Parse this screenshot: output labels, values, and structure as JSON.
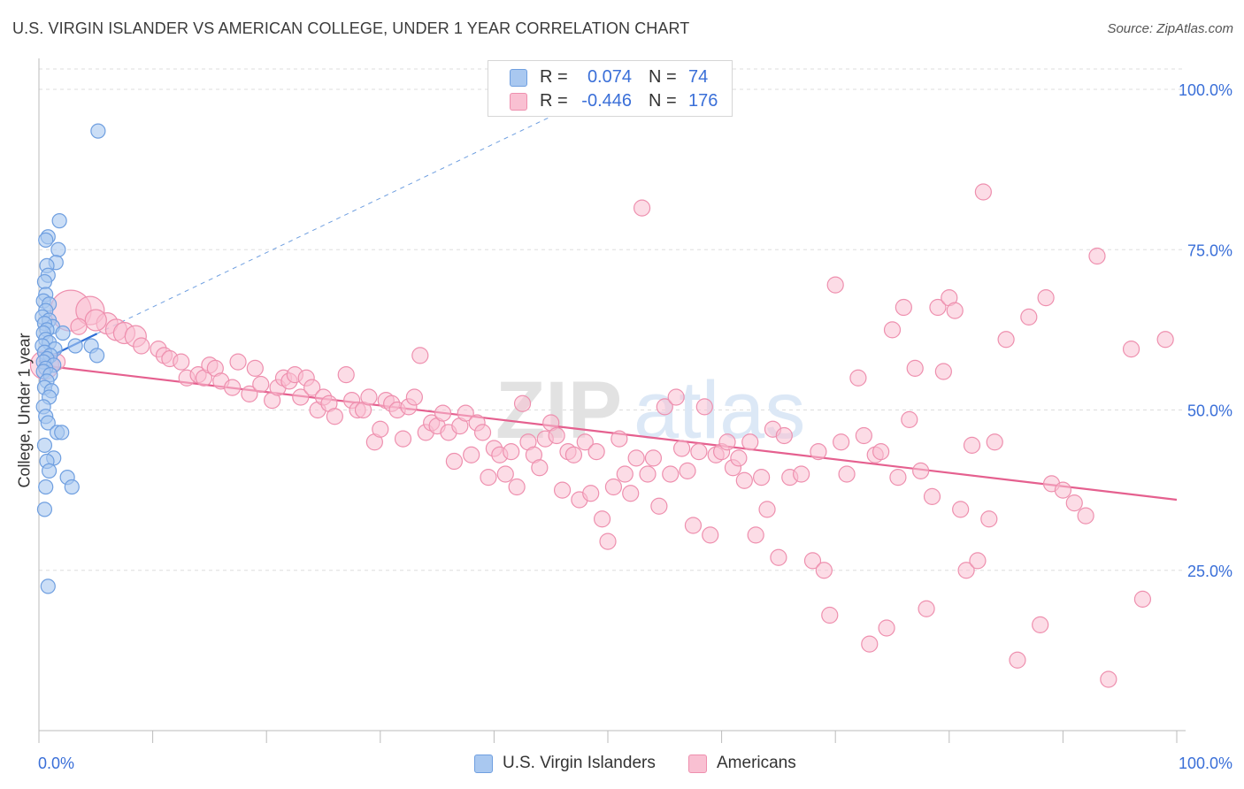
{
  "title": "U.S. VIRGIN ISLANDER VS AMERICAN COLLEGE, UNDER 1 YEAR CORRELATION CHART",
  "source": "Source: ZipAtlas.com",
  "watermark": "ZIPatlas",
  "legend": {
    "rows": [
      {
        "r_label": "R =",
        "r_value": "0.074",
        "n_label": "N =",
        "n_value": "74",
        "color": "#a9c8f0",
        "border": "#6f9fe0"
      },
      {
        "r_label": "R =",
        "r_value": "-0.446",
        "n_label": "N =",
        "n_value": "176",
        "color": "#f9c0d2",
        "border": "#ee8fae"
      }
    ]
  },
  "bottom_legend": [
    {
      "label": "U.S. Virgin Islanders",
      "color": "#a9c8f0",
      "border": "#6f9fe0"
    },
    {
      "label": "Americans",
      "color": "#f9c0d2",
      "border": "#ee8fae"
    }
  ],
  "chart_data": {
    "type": "scatter",
    "title": "U.S. VIRGIN ISLANDER VS AMERICAN COLLEGE, UNDER 1 YEAR CORRELATION CHART",
    "xlabel": "",
    "ylabel": "College, Under 1 year",
    "xlim": [
      0,
      100
    ],
    "ylim": [
      0,
      104
    ],
    "x_tick_labels": [
      "0.0%",
      "100.0%"
    ],
    "y_ticks": [
      25,
      50,
      75,
      100
    ],
    "y_tick_labels": [
      "25.0%",
      "50.0%",
      "75.0%",
      "100.0%"
    ],
    "grid": true,
    "legend_position": "top-center",
    "series": [
      {
        "name": "U.S. Virgin Islanders",
        "color": "#6f9fe0",
        "fill": "#a9c8f0",
        "trend": {
          "x": [
            0,
            5.1
          ],
          "y": [
            57.5,
            61.9
          ],
          "style": "solid"
        },
        "trend_extension": {
          "x": [
            5.1,
            50
          ],
          "y": [
            61.9,
            100
          ],
          "style": "dashed"
        },
        "points": [
          [
            5.2,
            93.5
          ],
          [
            1.8,
            79.5
          ],
          [
            0.8,
            77.0
          ],
          [
            0.6,
            76.5
          ],
          [
            1.7,
            75.0
          ],
          [
            1.5,
            73.0
          ],
          [
            0.7,
            72.5
          ],
          [
            0.8,
            71.0
          ],
          [
            0.5,
            70.0
          ],
          [
            0.6,
            68.0
          ],
          [
            0.4,
            67.0
          ],
          [
            0.9,
            66.5
          ],
          [
            0.6,
            65.5
          ],
          [
            0.3,
            64.5
          ],
          [
            0.9,
            64.0
          ],
          [
            1.2,
            63.0
          ],
          [
            0.5,
            63.5
          ],
          [
            0.7,
            62.5
          ],
          [
            0.4,
            62.0
          ],
          [
            2.1,
            62.0
          ],
          [
            0.6,
            61.0
          ],
          [
            0.9,
            60.5
          ],
          [
            0.3,
            60.0
          ],
          [
            1.4,
            59.5
          ],
          [
            3.2,
            60.0
          ],
          [
            4.6,
            60.0
          ],
          [
            0.5,
            59.0
          ],
          [
            1.0,
            58.5
          ],
          [
            0.7,
            58.0
          ],
          [
            0.4,
            57.5
          ],
          [
            1.3,
            57.0
          ],
          [
            5.1,
            58.5
          ],
          [
            0.6,
            56.5
          ],
          [
            0.4,
            56.0
          ],
          [
            1.0,
            55.5
          ],
          [
            0.7,
            54.5
          ],
          [
            0.5,
            53.5
          ],
          [
            1.1,
            53.0
          ],
          [
            0.9,
            52.0
          ],
          [
            0.4,
            50.5
          ],
          [
            0.6,
            49.0
          ],
          [
            0.8,
            48.0
          ],
          [
            1.6,
            46.5
          ],
          [
            2.0,
            46.5
          ],
          [
            0.5,
            44.5
          ],
          [
            1.3,
            42.5
          ],
          [
            0.7,
            42.0
          ],
          [
            0.9,
            40.5
          ],
          [
            2.5,
            39.5
          ],
          [
            0.6,
            38.0
          ],
          [
            2.9,
            38.0
          ],
          [
            0.5,
            34.5
          ],
          [
            0.8,
            22.5
          ]
        ]
      },
      {
        "name": "Americans",
        "color": "#ee8fae",
        "fill": "#f9c0d2",
        "trend": {
          "x": [
            0,
            100
          ],
          "y": [
            57.0,
            36.0
          ],
          "style": "solid"
        },
        "points": [
          [
            0.5,
            57.0,
            3
          ],
          [
            2.8,
            65.5,
            4
          ],
          [
            4.5,
            65.5,
            3
          ],
          [
            6.0,
            63.5,
            2
          ],
          [
            6.8,
            62.5,
            2
          ],
          [
            7.5,
            62.0,
            2
          ],
          [
            8.5,
            61.5,
            2
          ],
          [
            5.0,
            64.0,
            2
          ],
          [
            3.5,
            63.0,
            1
          ],
          [
            1.6,
            57.5,
            1
          ],
          [
            9.0,
            60.0,
            1
          ],
          [
            10.5,
            59.5,
            1
          ],
          [
            11.0,
            58.5,
            1
          ],
          [
            11.5,
            58.0,
            1
          ],
          [
            12.5,
            57.5,
            1
          ],
          [
            13.0,
            55.0,
            1
          ],
          [
            14.0,
            55.5,
            1
          ],
          [
            14.5,
            55.0,
            1
          ],
          [
            15.0,
            57.0,
            1
          ],
          [
            15.5,
            56.5,
            1
          ],
          [
            16.0,
            54.5,
            1
          ],
          [
            17.0,
            53.5,
            1
          ],
          [
            17.5,
            57.5,
            1
          ],
          [
            18.5,
            52.5,
            1
          ],
          [
            19.0,
            56.5,
            1
          ],
          [
            19.5,
            54.0,
            1
          ],
          [
            20.5,
            51.5,
            1
          ],
          [
            21.0,
            53.5,
            1
          ],
          [
            21.5,
            55.0,
            1
          ],
          [
            22.0,
            54.5,
            1
          ],
          [
            22.5,
            55.5,
            1
          ],
          [
            23.0,
            52.0,
            1
          ],
          [
            23.5,
            55.0,
            1
          ],
          [
            24.0,
            53.5,
            1
          ],
          [
            24.5,
            50.0,
            1
          ],
          [
            25.0,
            52.0,
            1
          ],
          [
            25.5,
            51.0,
            1
          ],
          [
            26.0,
            49.0,
            1
          ],
          [
            27.0,
            55.5,
            1
          ],
          [
            27.5,
            51.5,
            1
          ],
          [
            28.0,
            50.0,
            1
          ],
          [
            28.5,
            50.0,
            1
          ],
          [
            29.0,
            52.0,
            1
          ],
          [
            29.5,
            45.0,
            1
          ],
          [
            30.0,
            47.0,
            1
          ],
          [
            30.5,
            51.5,
            1
          ],
          [
            31.0,
            51.0,
            1
          ],
          [
            31.5,
            50.0,
            1
          ],
          [
            32.0,
            45.5,
            1
          ],
          [
            32.5,
            50.5,
            1
          ],
          [
            33.0,
            52.0,
            1
          ],
          [
            33.5,
            58.5,
            1
          ],
          [
            34.0,
            46.5,
            1
          ],
          [
            34.5,
            48.0,
            1
          ],
          [
            35.0,
            47.5,
            1
          ],
          [
            35.5,
            49.5,
            1
          ],
          [
            36.0,
            46.5,
            1
          ],
          [
            36.5,
            42.0,
            1
          ],
          [
            37.0,
            47.5,
            1
          ],
          [
            37.5,
            49.5,
            1
          ],
          [
            38.0,
            43.0,
            1
          ],
          [
            38.5,
            48.0,
            1
          ],
          [
            39.0,
            46.5,
            1
          ],
          [
            39.5,
            39.5,
            1
          ],
          [
            40.0,
            44.0,
            1
          ],
          [
            40.5,
            43.0,
            1
          ],
          [
            41.0,
            40.0,
            1
          ],
          [
            41.5,
            43.5,
            1
          ],
          [
            42.0,
            38.0,
            1
          ],
          [
            42.5,
            51.0,
            1
          ],
          [
            43.0,
            45.0,
            1
          ],
          [
            43.5,
            43.0,
            1
          ],
          [
            44.0,
            41.0,
            1
          ],
          [
            44.5,
            45.5,
            1
          ],
          [
            45.0,
            48.0,
            1
          ],
          [
            45.5,
            46.0,
            1
          ],
          [
            46.0,
            37.5,
            1
          ],
          [
            46.5,
            43.5,
            1
          ],
          [
            47.0,
            43.0,
            1
          ],
          [
            47.5,
            36.0,
            1
          ],
          [
            48.0,
            45.0,
            1
          ],
          [
            48.5,
            37.0,
            1
          ],
          [
            49.0,
            43.5,
            1
          ],
          [
            49.5,
            33.0,
            1
          ],
          [
            50.0,
            29.5,
            1
          ],
          [
            50.5,
            38.0,
            1
          ],
          [
            51.0,
            45.5,
            1
          ],
          [
            51.5,
            40.0,
            1
          ],
          [
            52.0,
            37.0,
            1
          ],
          [
            52.5,
            42.5,
            1
          ],
          [
            53.0,
            81.5,
            1
          ],
          [
            53.5,
            40.0,
            1
          ],
          [
            54.0,
            42.5,
            1
          ],
          [
            54.5,
            35.0,
            1
          ],
          [
            55.0,
            50.5,
            1
          ],
          [
            55.5,
            40.0,
            1
          ],
          [
            56.0,
            52.0,
            1
          ],
          [
            56.5,
            44.0,
            1
          ],
          [
            57.0,
            40.5,
            1
          ],
          [
            57.5,
            32.0,
            1
          ],
          [
            58.0,
            43.5,
            1
          ],
          [
            58.5,
            50.5,
            1
          ],
          [
            59.0,
            30.5,
            1
          ],
          [
            59.5,
            43.0,
            1
          ],
          [
            60.0,
            43.5,
            1
          ],
          [
            60.5,
            45.0,
            1
          ],
          [
            61.0,
            41.0,
            1
          ],
          [
            61.5,
            42.5,
            1
          ],
          [
            62.0,
            39.0,
            1
          ],
          [
            62.5,
            45.0,
            1
          ],
          [
            63.0,
            30.5,
            1
          ],
          [
            63.5,
            39.5,
            1
          ],
          [
            64.0,
            34.5,
            1
          ],
          [
            64.5,
            47.0,
            1
          ],
          [
            65.0,
            27.0,
            1
          ],
          [
            65.5,
            46.0,
            1
          ],
          [
            66.0,
            39.5,
            1
          ],
          [
            67.0,
            40.0,
            1
          ],
          [
            68.0,
            26.5,
            1
          ],
          [
            68.5,
            43.5,
            1
          ],
          [
            69.0,
            25.0,
            1
          ],
          [
            69.5,
            18.0,
            1
          ],
          [
            70.0,
            69.5,
            1
          ],
          [
            70.5,
            45.0,
            1
          ],
          [
            71.0,
            40.0,
            1
          ],
          [
            72.0,
            55.0,
            1
          ],
          [
            72.5,
            46.0,
            1
          ],
          [
            73.0,
            13.5,
            1
          ],
          [
            73.5,
            43.0,
            1
          ],
          [
            74.0,
            43.5,
            1
          ],
          [
            74.5,
            16.0,
            1
          ],
          [
            75.0,
            62.5,
            1
          ],
          [
            75.5,
            39.5,
            1
          ],
          [
            76.0,
            66.0,
            1
          ],
          [
            76.5,
            48.5,
            1
          ],
          [
            77.0,
            56.5,
            1
          ],
          [
            77.5,
            40.5,
            1
          ],
          [
            78.0,
            19.0,
            1
          ],
          [
            78.5,
            36.5,
            1
          ],
          [
            79.0,
            66.0,
            1
          ],
          [
            79.5,
            56.0,
            1
          ],
          [
            80.0,
            67.5,
            1
          ],
          [
            80.5,
            65.5,
            1
          ],
          [
            81.0,
            34.5,
            1
          ],
          [
            81.5,
            25.0,
            1
          ],
          [
            82.0,
            44.5,
            1
          ],
          [
            82.5,
            26.5,
            1
          ],
          [
            83.0,
            84.0,
            1
          ],
          [
            83.5,
            33.0,
            1
          ],
          [
            84.0,
            45.0,
            1
          ],
          [
            85.0,
            61.0,
            1
          ],
          [
            86.0,
            11.0,
            1
          ],
          [
            87.0,
            64.5,
            1
          ],
          [
            88.0,
            16.5,
            1
          ],
          [
            88.5,
            67.5,
            1
          ],
          [
            89.0,
            38.5,
            1
          ],
          [
            90.0,
            37.5,
            1
          ],
          [
            91.0,
            35.5,
            1
          ],
          [
            92.0,
            33.5,
            1
          ],
          [
            93.0,
            74.0,
            1
          ],
          [
            94.0,
            8.0,
            1
          ],
          [
            96.0,
            59.5,
            1
          ],
          [
            97.0,
            20.5,
            1
          ],
          [
            99.0,
            61.0,
            1
          ]
        ]
      }
    ]
  }
}
